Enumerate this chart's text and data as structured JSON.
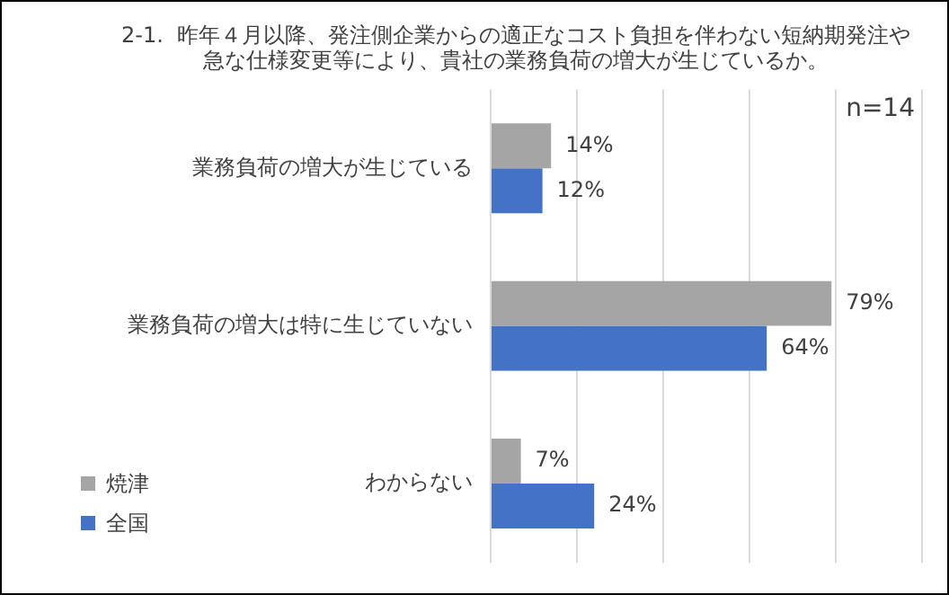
{
  "chart_data": {
    "type": "bar",
    "orientation": "horizontal",
    "title": [
      "2-1.  昨年４月以降、発注側企業からの適正なコスト負担を伴わない短納期発注や",
      "急な仕様変更等により、貴社の業務負荷の増大が生じているか。"
    ],
    "categories": [
      "業務負荷の増大が生じている",
      "業務負荷の増大は特に生じていない",
      "わからない"
    ],
    "series": [
      {
        "name": "焼津",
        "color": "#a5a5a5",
        "values": [
          14,
          79,
          7
        ],
        "value_labels": [
          "14%",
          "79%",
          "7%"
        ]
      },
      {
        "name": "全国",
        "color": "#4472c4",
        "values": [
          12,
          64,
          24
        ],
        "value_labels": [
          "12%",
          "64%",
          "24%"
        ]
      }
    ],
    "xlim": [
      0,
      100
    ],
    "xticks": [
      {
        "value": 0,
        "label": null
      },
      {
        "value": 20,
        "label": null
      },
      {
        "value": 40,
        "label": null
      },
      {
        "value": 60,
        "label": null
      },
      {
        "value": 80,
        "label": null
      },
      {
        "value": 100,
        "label": null
      }
    ],
    "tick_labels": "y",
    "grid": "x",
    "legend": "bottom left",
    "annotations": [
      "n=14"
    ]
  }
}
